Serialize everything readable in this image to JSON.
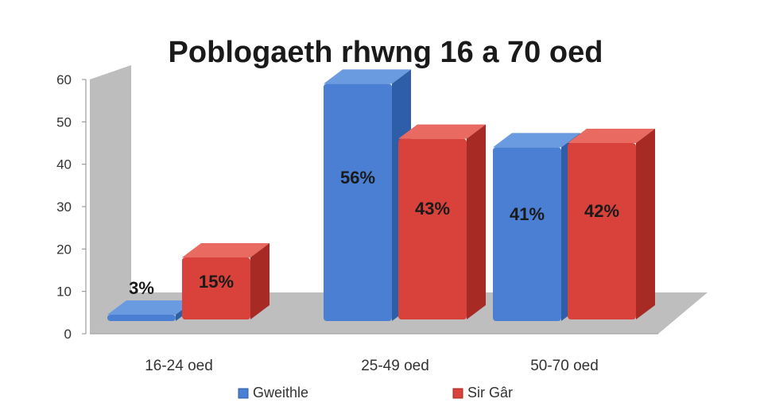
{
  "chart_data": {
    "type": "bar",
    "title": "Poblogaeth rhwng 16 a 70 oed",
    "categories": [
      "16-24 oed",
      "25-49 oed",
      "50-70 oed"
    ],
    "series": [
      {
        "name": "Gweithle",
        "values": [
          3,
          56,
          41
        ],
        "labels": [
          "3%",
          "56%",
          "41%"
        ],
        "color": "#4a7fd4",
        "dark": "#2f5ea8",
        "light": "#6a9ae0"
      },
      {
        "name": "Sir Gâr",
        "values": [
          15,
          43,
          42
        ],
        "labels": [
          "15%",
          "43%",
          "42%"
        ],
        "color": "#d8423a",
        "dark": "#a72a24",
        "light": "#e86a60"
      }
    ],
    "ylim": [
      0,
      60
    ],
    "yticks": [
      "0",
      "10",
      "20",
      "30",
      "40",
      "50",
      "60"
    ],
    "xlabel": "",
    "ylabel": "",
    "legend": "bottom",
    "style": "3d"
  }
}
